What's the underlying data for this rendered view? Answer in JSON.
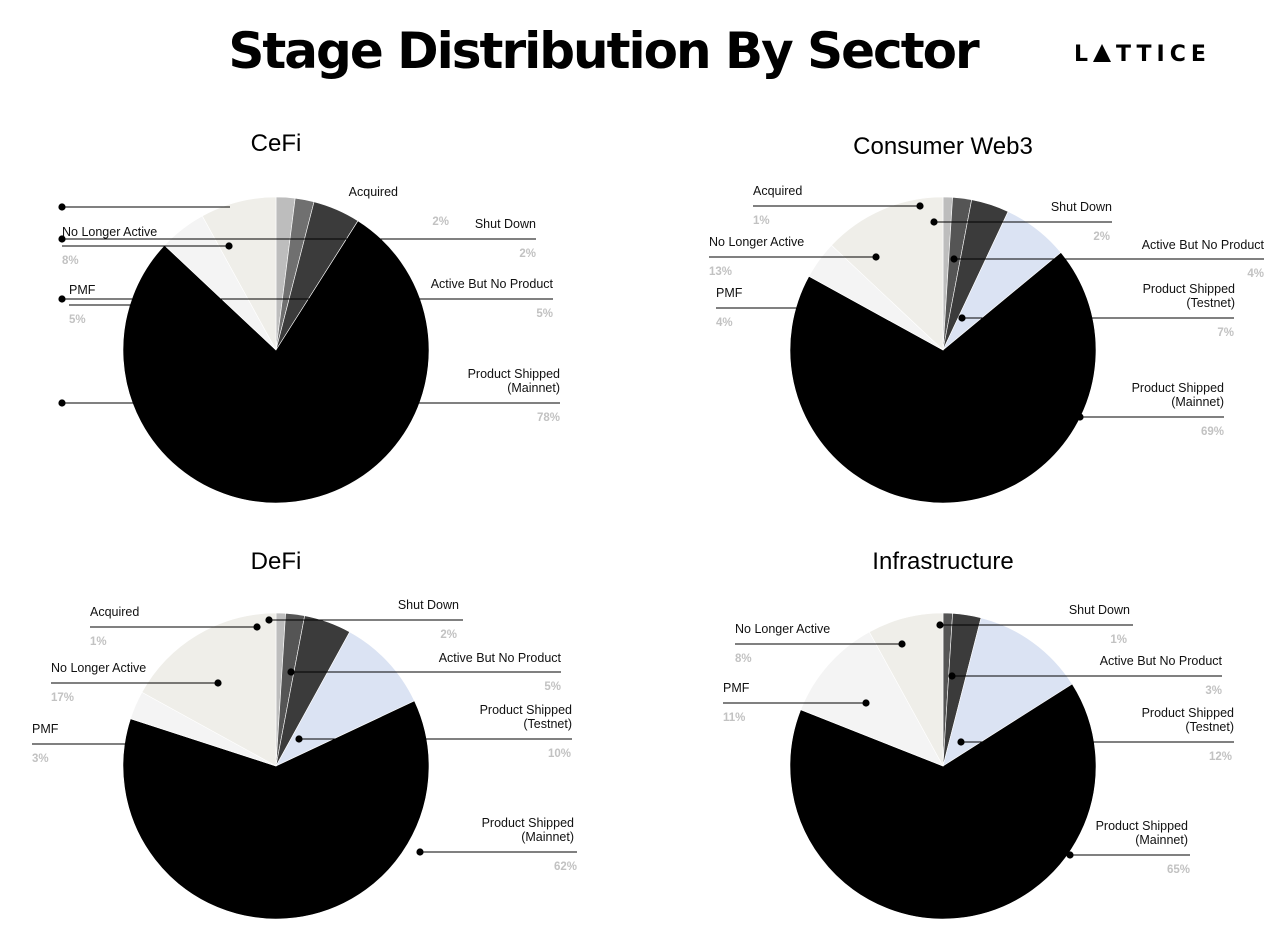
{
  "title": "Stage Distribution By Sector",
  "brand": {
    "before": "L",
    "after": "TTICE"
  },
  "colors": {
    "Acquired": "#bdbdbd",
    "Shut Down": "#3b3b3b",
    "Active But No Product": "#dbe3f3",
    "Product Shipped (Testnet)": "#dbe3f3",
    "Product Shipped (Mainnet)": "#000000",
    "PMF": "#f4f4f4",
    "No Longer Active": "#efeee9"
  },
  "chart_data": [
    {
      "type": "pie",
      "title": "CeFi",
      "slices": [
        {
          "label": "Acquired",
          "lines": [
            "Acquired"
          ],
          "pct_text": "2%",
          "value": 2,
          "color": "#bdbdbd"
        },
        {
          "label": "Shut Down",
          "lines": [
            "Shut Down"
          ],
          "pct_text": "2%",
          "value": 2,
          "color": "#707070"
        },
        {
          "label": "Active But No Product",
          "lines": [
            "Active But No Product"
          ],
          "pct_text": "5%",
          "value": 5,
          "color": "#3b3b3b"
        },
        {
          "label": "Product Shipped (Mainnet)",
          "lines": [
            "Product Shipped",
            "(Mainnet)"
          ],
          "pct_text": "78%",
          "value": 78,
          "color": "#000000"
        },
        {
          "label": "PMF",
          "lines": [
            "PMF"
          ],
          "pct_text": "5%",
          "value": 5,
          "color": "#f4f4f4"
        },
        {
          "label": "No Longer Active",
          "lines": [
            "No Longer Active"
          ],
          "pct_text": "8%",
          "value": 8,
          "color": "#efeee9"
        }
      ]
    },
    {
      "type": "pie",
      "title": "Consumer Web3",
      "slices": [
        {
          "label": "Acquired",
          "lines": [
            "Acquired"
          ],
          "pct_text": "1%",
          "value": 1,
          "color": "#bdbdbd"
        },
        {
          "label": "Shut Down",
          "lines": [
            "Shut Down"
          ],
          "pct_text": "2%",
          "value": 2,
          "color": "#555555"
        },
        {
          "label": "Active But No Product",
          "lines": [
            "Active But No Product"
          ],
          "pct_text": "4%",
          "value": 4,
          "color": "#3b3b3b"
        },
        {
          "label": "Product Shipped (Testnet)",
          "lines": [
            "Product Shipped",
            "(Testnet)"
          ],
          "pct_text": "7%",
          "value": 7,
          "color": "#dbe3f3"
        },
        {
          "label": "Product Shipped (Mainnet)",
          "lines": [
            "Product Shipped",
            "(Mainnet)"
          ],
          "pct_text": "69%",
          "value": 69,
          "color": "#000000"
        },
        {
          "label": "PMF",
          "lines": [
            "PMF"
          ],
          "pct_text": "4%",
          "value": 4,
          "color": "#f4f4f4"
        },
        {
          "label": "No Longer Active",
          "lines": [
            "No Longer Active"
          ],
          "pct_text": "13%",
          "value": 13,
          "color": "#efeee9"
        }
      ]
    },
    {
      "type": "pie",
      "title": "DeFi",
      "slices": [
        {
          "label": "Acquired",
          "lines": [
            "Acquired"
          ],
          "pct_text": "1%",
          "value": 1,
          "color": "#bdbdbd"
        },
        {
          "label": "Shut Down",
          "lines": [
            "Shut Down"
          ],
          "pct_text": "2%",
          "value": 2,
          "color": "#555555"
        },
        {
          "label": "Active But No Product",
          "lines": [
            "Active But No Product"
          ],
          "pct_text": "5%",
          "value": 5,
          "color": "#3b3b3b"
        },
        {
          "label": "Product Shipped (Testnet)",
          "lines": [
            "Product Shipped",
            "(Testnet)"
          ],
          "pct_text": "10%",
          "value": 10,
          "color": "#dbe3f3"
        },
        {
          "label": "Product Shipped (Mainnet)",
          "lines": [
            "Product Shipped",
            "(Mainnet)"
          ],
          "pct_text": "62%",
          "value": 62,
          "color": "#000000"
        },
        {
          "label": "PMF",
          "lines": [
            "PMF"
          ],
          "pct_text": "3%",
          "value": 3,
          "color": "#f4f4f4"
        },
        {
          "label": "No Longer Active",
          "lines": [
            "No Longer Active"
          ],
          "pct_text": "17%",
          "value": 17,
          "color": "#efeee9"
        }
      ]
    },
    {
      "type": "pie",
      "title": "Infrastructure",
      "slices": [
        {
          "label": "Shut Down",
          "lines": [
            "Shut Down"
          ],
          "pct_text": "1%",
          "value": 1,
          "color": "#555555"
        },
        {
          "label": "Active But No Product",
          "lines": [
            "Active But No Product"
          ],
          "pct_text": "3%",
          "value": 3,
          "color": "#3b3b3b"
        },
        {
          "label": "Product Shipped (Testnet)",
          "lines": [
            "Product Shipped",
            "(Testnet)"
          ],
          "pct_text": "12%",
          "value": 12,
          "color": "#dbe3f3"
        },
        {
          "label": "Product Shipped (Mainnet)",
          "lines": [
            "Product Shipped",
            "(Mainnet)"
          ],
          "pct_text": "65%",
          "value": 65,
          "color": "#000000"
        },
        {
          "label": "PMF",
          "lines": [
            "PMF"
          ],
          "pct_text": "11%",
          "value": 11,
          "color": "#f4f4f4"
        },
        {
          "label": "No Longer Active",
          "lines": [
            "No Longer Active"
          ],
          "pct_text": "8%",
          "value": 8,
          "color": "#efeee9"
        }
      ]
    }
  ]
}
